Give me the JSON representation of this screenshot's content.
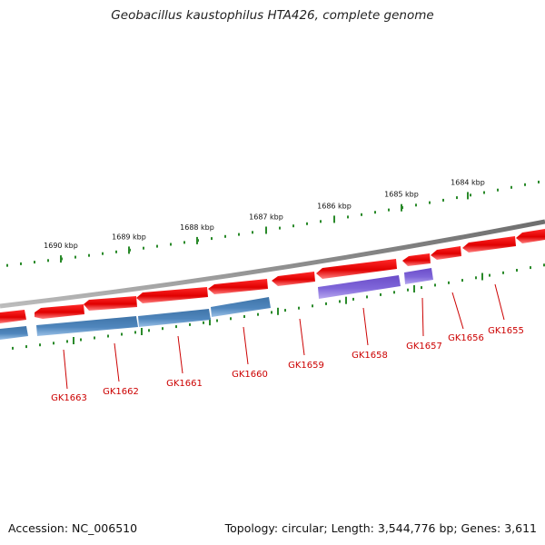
{
  "title": "Geobacillus kaustophilus HTA426, complete genome",
  "footer": {
    "accession": "Accession: NC_006510",
    "summary": "Topology: circular; Length: 3,544,776 bp; Genes: 3,611"
  },
  "colors": {
    "backbone": "#808080",
    "forward_gene": "#ff0000",
    "reverse_gene_blue": "#4a86c0",
    "reverse_gene_purple": "#7a5fd6",
    "tick": "#2a8a2a",
    "gene_label": "#cc0000"
  },
  "scale_ticks": [
    "1690 kbp",
    "1689 kbp",
    "1688 kbp",
    "1687 kbp",
    "1686 kbp",
    "1685 kbp",
    "1684 kbp"
  ],
  "genes": [
    {
      "label": "GK1663",
      "strand": "reverse",
      "color": "blue"
    },
    {
      "label": "GK1662",
      "strand": "reverse",
      "color": "blue"
    },
    {
      "label": "GK1661",
      "strand": "reverse",
      "color": "blue"
    },
    {
      "label": "GK1660",
      "strand": "reverse",
      "color": "blue"
    },
    {
      "label": "GK1659",
      "strand": "forward",
      "color": "red"
    },
    {
      "label": "GK1658",
      "strand": "reverse",
      "color": "purple"
    },
    {
      "label": "GK1657",
      "strand": "reverse",
      "color": "purple"
    },
    {
      "label": "GK1656",
      "strand": "forward",
      "color": "red"
    },
    {
      "label": "GK1655",
      "strand": "forward",
      "color": "red"
    }
  ]
}
